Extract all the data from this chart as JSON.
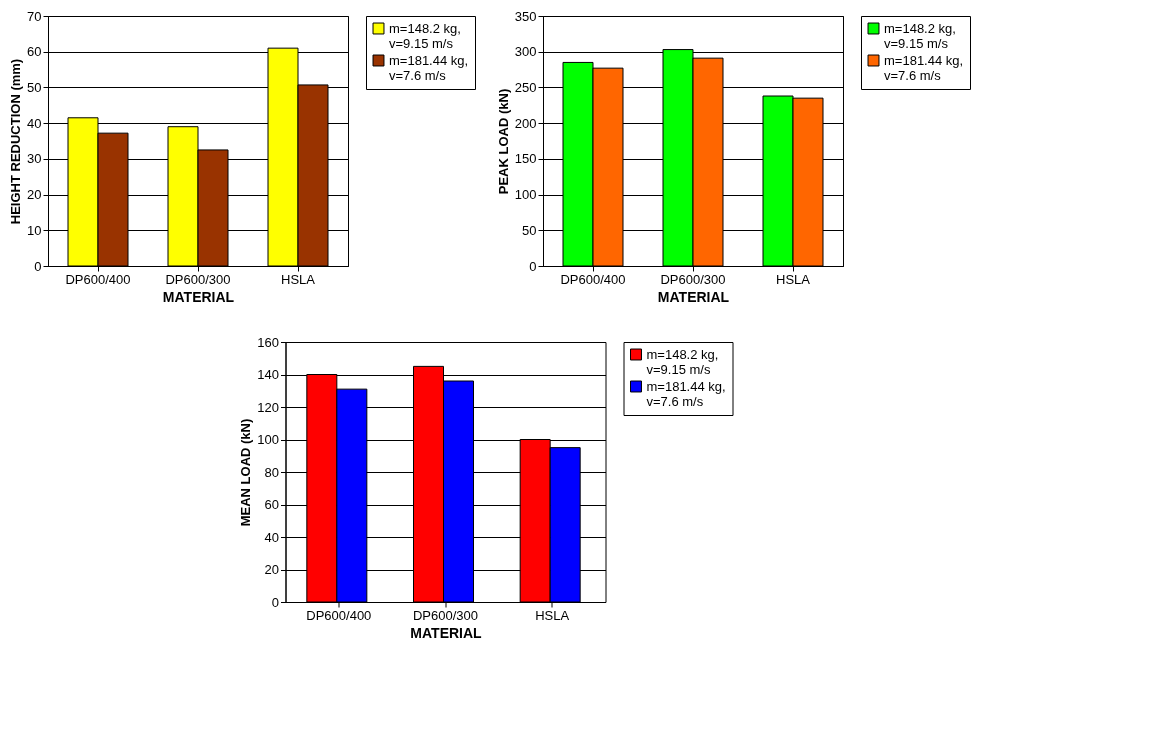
{
  "chart_data": [
    {
      "type": "bar",
      "xlabel": "MATERIAL",
      "ylabel": "HEIGHT REDUCTION (mm)",
      "categories": [
        "DP600/400",
        "DP600/300",
        "HSLA"
      ],
      "ylim": [
        0,
        70
      ],
      "yticks": [
        0,
        10,
        20,
        30,
        40,
        50,
        60,
        70
      ],
      "grid": "y",
      "legend": "right",
      "series": [
        {
          "name": "m=148.2 kg, v=9.15 m/s",
          "color": "#ffff00",
          "values": [
            41.5,
            39,
            61
          ]
        },
        {
          "name": "m=181.44 kg, v=7.6 m/s",
          "color": "#993300",
          "values": [
            37.2,
            32.5,
            50.7
          ]
        }
      ]
    },
    {
      "type": "bar",
      "xlabel": "MATERIAL",
      "ylabel": "PEAK LOAD (kN)",
      "categories": [
        "DP600/400",
        "DP600/300",
        "HSLA"
      ],
      "ylim": [
        0,
        350
      ],
      "yticks": [
        0,
        50,
        100,
        150,
        200,
        250,
        300,
        350
      ],
      "grid": "y",
      "legend": "right",
      "series": [
        {
          "name": "m=148.2 kg, v=9.15 m/s",
          "color": "#00ff00",
          "values": [
            285,
            303,
            238
          ]
        },
        {
          "name": "m=181.44 kg, v=7.6 m/s",
          "color": "#ff6600",
          "values": [
            277,
            291,
            235
          ]
        }
      ]
    },
    {
      "type": "bar",
      "xlabel": "MATERIAL",
      "ylabel": "MEAN LOAD (kN)",
      "categories": [
        "DP600/400",
        "DP600/300",
        "HSLA"
      ],
      "ylim": [
        0,
        160
      ],
      "yticks": [
        0,
        20,
        40,
        60,
        80,
        100,
        120,
        140,
        160
      ],
      "grid": "y",
      "legend": "right",
      "series": [
        {
          "name": "m=148.2 kg, v=9.15 m/s",
          "color": "#ff0000",
          "values": [
            140,
            145,
            100
          ]
        },
        {
          "name": "m=181.44 kg, v=7.6 m/s",
          "color": "#0000ff",
          "values": [
            131,
            136,
            95
          ]
        }
      ]
    }
  ]
}
